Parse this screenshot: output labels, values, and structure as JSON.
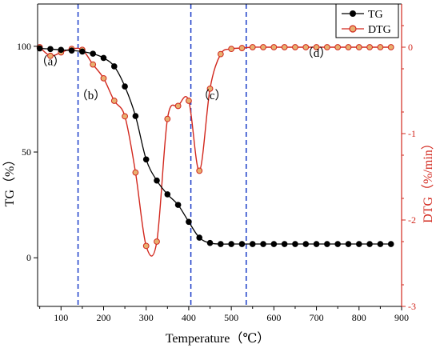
{
  "chart_data": {
    "type": "line",
    "xlabel": "Temperature（℃）",
    "ylabel_left": "TG（%）",
    "ylabel_right": "DTG（%/min）",
    "xlim": [
      45,
      900
    ],
    "ylim_left": [
      -23,
      120
    ],
    "ylim_right": [
      -3,
      0.5
    ],
    "x_ticks": [
      100,
      200,
      300,
      400,
      500,
      600,
      700,
      800,
      900
    ],
    "y_left_ticks": [
      0,
      50,
      100
    ],
    "y_right_ticks": [
      0,
      -1,
      -2,
      -3
    ],
    "stage_boundaries": [
      140,
      405,
      535
    ],
    "stage_labels": [
      {
        "text": "（a）",
        "x": 75,
        "y": 91
      },
      {
        "text": "（b）",
        "x": 170,
        "y": 75
      },
      {
        "text": "（c）",
        "x": 455,
        "y": 75
      },
      {
        "text": "（d）",
        "x": 700,
        "y": 95
      }
    ],
    "legend_position": "top-right",
    "colors": {
      "TG": "#000000",
      "DTG": "#d2281e",
      "DTG_marker_fill": "#e8b070",
      "boundary": "#1a3cc8"
    },
    "series": [
      {
        "name": "TG",
        "axis": "left",
        "x": [
          50,
          75,
          100,
          125,
          150,
          175,
          200,
          225,
          250,
          275,
          300,
          325,
          350,
          375,
          400,
          425,
          450,
          475,
          500,
          525,
          550,
          575,
          600,
          625,
          650,
          675,
          700,
          725,
          750,
          775,
          800,
          825,
          850,
          875
        ],
        "values": [
          99,
          98.7,
          98.3,
          98,
          97.5,
          96.5,
          94.5,
          90.5,
          81,
          67,
          46.5,
          36.5,
          30,
          25,
          17,
          9.5,
          7,
          6.5,
          6.5,
          6.5,
          6.5,
          6.5,
          6.5,
          6.5,
          6.5,
          6.5,
          6.5,
          6.5,
          6.5,
          6.5,
          6.5,
          6.5,
          6.5,
          6.5
        ]
      },
      {
        "name": "DTG",
        "axis": "right",
        "x": [
          50,
          75,
          100,
          125,
          150,
          175,
          200,
          225,
          250,
          275,
          300,
          325,
          350,
          375,
          400,
          425,
          450,
          475,
          500,
          525,
          550,
          575,
          600,
          625,
          650,
          675,
          700,
          725,
          750,
          775,
          800,
          825,
          850,
          875
        ],
        "values": [
          0.0,
          -0.1,
          -0.06,
          -0.02,
          -0.03,
          -0.2,
          -0.36,
          -0.62,
          -0.8,
          -1.45,
          -2.3,
          -2.25,
          -0.83,
          -0.68,
          -0.62,
          -1.43,
          -0.48,
          -0.08,
          -0.02,
          -0.01,
          0,
          0,
          0,
          0,
          0,
          0,
          0,
          0,
          0,
          0,
          0,
          0,
          0,
          0
        ]
      }
    ]
  }
}
